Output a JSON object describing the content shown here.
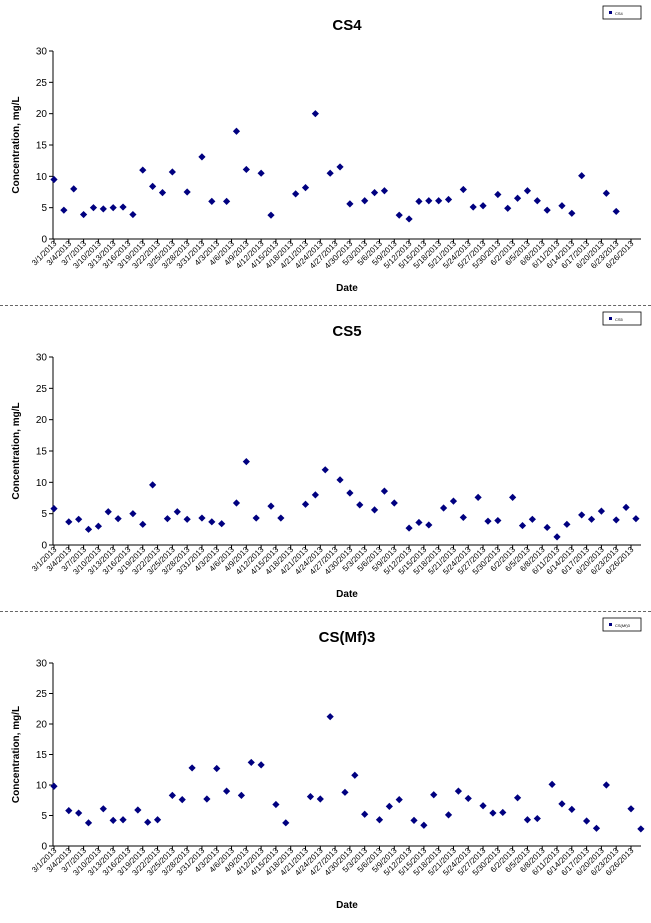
{
  "page": {
    "background": "#ffffff",
    "marker_color": "#000080",
    "border_style": "dashed"
  },
  "chart_data": [
    {
      "type": "scatter",
      "title": "CS4",
      "xlabel": "Date",
      "ylabel": "Concentration, mg/L",
      "ylim": [
        0,
        30
      ],
      "yticks": [
        0,
        5,
        10,
        15,
        20,
        25,
        30
      ],
      "xticklabels": [
        "3/1/2013",
        "3/4/2013",
        "3/7/2013",
        "3/10/2013",
        "3/13/2013",
        "3/16/2013",
        "3/19/2013",
        "3/22/2013",
        "3/25/2013",
        "3/28/2013",
        "3/31/2013",
        "4/3/2013",
        "4/6/2013",
        "4/9/2013",
        "4/12/2013",
        "4/15/2013",
        "4/18/2013",
        "4/21/2013",
        "4/24/2013",
        "4/27/2013",
        "4/30/2013",
        "5/3/2013",
        "5/6/2013",
        "5/9/2013",
        "5/12/2013",
        "5/15/2013",
        "5/18/2013",
        "5/21/2013",
        "5/24/2013",
        "5/27/2013",
        "5/30/2013",
        "6/2/2013",
        "6/5/2013",
        "6/8/2013",
        "6/11/2013",
        "6/14/2013",
        "6/17/2013",
        "6/20/2013",
        "6/23/2013",
        "6/26/2013"
      ],
      "legend_position": "top-right",
      "legend_label": "CS4",
      "points": [
        {
          "x": "3/1/2013",
          "y": 9.5
        },
        {
          "x": "3/3/2013",
          "y": 4.6
        },
        {
          "x": "3/5/2013",
          "y": 8.0
        },
        {
          "x": "3/7/2013",
          "y": 3.9
        },
        {
          "x": "3/9/2013",
          "y": 5.0
        },
        {
          "x": "3/11/2013",
          "y": 4.8
        },
        {
          "x": "3/13/2013",
          "y": 5.0
        },
        {
          "x": "3/15/2013",
          "y": 5.1
        },
        {
          "x": "3/17/2013",
          "y": 3.9
        },
        {
          "x": "3/19/2013",
          "y": 11.0
        },
        {
          "x": "3/21/2013",
          "y": 8.4
        },
        {
          "x": "3/23/2013",
          "y": 7.4
        },
        {
          "x": "3/25/2013",
          "y": 10.7
        },
        {
          "x": "3/28/2013",
          "y": 7.5
        },
        {
          "x": "3/31/2013",
          "y": 13.1
        },
        {
          "x": "4/2/2013",
          "y": 6.0
        },
        {
          "x": "4/5/2013",
          "y": 6.0
        },
        {
          "x": "4/7/2013",
          "y": 17.2
        },
        {
          "x": "4/9/2013",
          "y": 11.1
        },
        {
          "x": "4/12/2013",
          "y": 10.5
        },
        {
          "x": "4/14/2013",
          "y": 3.8
        },
        {
          "x": "4/19/2013",
          "y": 7.2
        },
        {
          "x": "4/21/2013",
          "y": 8.2
        },
        {
          "x": "4/23/2013",
          "y": 20.0
        },
        {
          "x": "4/26/2013",
          "y": 10.5
        },
        {
          "x": "4/28/2013",
          "y": 11.5
        },
        {
          "x": "4/30/2013",
          "y": 5.6
        },
        {
          "x": "5/3/2013",
          "y": 6.1
        },
        {
          "x": "5/5/2013",
          "y": 7.4
        },
        {
          "x": "5/7/2013",
          "y": 7.7
        },
        {
          "x": "5/10/2013",
          "y": 3.8
        },
        {
          "x": "5/12/2013",
          "y": 3.2
        },
        {
          "x": "5/14/2013",
          "y": 6.0
        },
        {
          "x": "5/16/2013",
          "y": 6.1
        },
        {
          "x": "5/18/2013",
          "y": 6.1
        },
        {
          "x": "5/20/2013",
          "y": 6.3
        },
        {
          "x": "5/23/2013",
          "y": 7.9
        },
        {
          "x": "5/25/2013",
          "y": 5.1
        },
        {
          "x": "5/27/2013",
          "y": 5.3
        },
        {
          "x": "5/30/2013",
          "y": 7.1
        },
        {
          "x": "6/1/2013",
          "y": 4.9
        },
        {
          "x": "6/3/2013",
          "y": 6.5
        },
        {
          "x": "6/5/2013",
          "y": 7.7
        },
        {
          "x": "6/7/2013",
          "y": 6.1
        },
        {
          "x": "6/9/2013",
          "y": 4.6
        },
        {
          "x": "6/12/2013",
          "y": 5.3
        },
        {
          "x": "6/14/2013",
          "y": 4.1
        },
        {
          "x": "6/16/2013",
          "y": 10.1
        },
        {
          "x": "6/21/2013",
          "y": 7.3
        },
        {
          "x": "6/23/2013",
          "y": 4.4
        }
      ]
    },
    {
      "type": "scatter",
      "title": "CS5",
      "xlabel": "Date",
      "ylabel": "Concentration, mg/L",
      "ylim": [
        0,
        30
      ],
      "yticks": [
        0,
        5,
        10,
        15,
        20,
        25,
        30
      ],
      "xticklabels": [
        "3/1/2013",
        "3/4/2013",
        "3/7/2013",
        "3/10/2013",
        "3/13/2013",
        "3/16/2013",
        "3/19/2013",
        "3/22/2013",
        "3/25/2013",
        "3/28/2013",
        "3/31/2013",
        "4/3/2013",
        "4/6/2013",
        "4/9/2013",
        "4/12/2013",
        "4/15/2013",
        "4/18/2013",
        "4/21/2013",
        "4/24/2013",
        "4/27/2013",
        "4/30/2013",
        "5/3/2013",
        "5/6/2013",
        "5/9/2013",
        "5/12/2013",
        "5/15/2013",
        "5/18/2013",
        "5/21/2013",
        "5/24/2013",
        "5/27/2013",
        "5/30/2013",
        "6/2/2013",
        "6/5/2013",
        "6/8/2013",
        "6/11/2013",
        "6/14/2013",
        "6/17/2013",
        "6/20/2013",
        "6/23/2013",
        "6/26/2013"
      ],
      "legend_position": "top-right",
      "legend_label": "CS5",
      "points": [
        {
          "x": "3/1/2013",
          "y": 5.8
        },
        {
          "x": "3/4/2013",
          "y": 3.7
        },
        {
          "x": "3/6/2013",
          "y": 4.1
        },
        {
          "x": "3/8/2013",
          "y": 2.5
        },
        {
          "x": "3/10/2013",
          "y": 3.0
        },
        {
          "x": "3/12/2013",
          "y": 5.3
        },
        {
          "x": "3/14/2013",
          "y": 4.2
        },
        {
          "x": "3/17/2013",
          "y": 5.0
        },
        {
          "x": "3/19/2013",
          "y": 3.3
        },
        {
          "x": "3/21/2013",
          "y": 9.6
        },
        {
          "x": "3/24/2013",
          "y": 4.2
        },
        {
          "x": "3/26/2013",
          "y": 5.3
        },
        {
          "x": "3/28/2013",
          "y": 4.1
        },
        {
          "x": "3/31/2013",
          "y": 4.3
        },
        {
          "x": "4/2/2013",
          "y": 3.7
        },
        {
          "x": "4/4/2013",
          "y": 3.4
        },
        {
          "x": "4/7/2013",
          "y": 6.7
        },
        {
          "x": "4/9/2013",
          "y": 13.3
        },
        {
          "x": "4/11/2013",
          "y": 4.3
        },
        {
          "x": "4/14/2013",
          "y": 6.2
        },
        {
          "x": "4/16/2013",
          "y": 4.3
        },
        {
          "x": "4/21/2013",
          "y": 6.5
        },
        {
          "x": "4/23/2013",
          "y": 8.0
        },
        {
          "x": "4/25/2013",
          "y": 12.0
        },
        {
          "x": "4/28/2013",
          "y": 10.4
        },
        {
          "x": "4/30/2013",
          "y": 8.3
        },
        {
          "x": "5/2/2013",
          "y": 6.4
        },
        {
          "x": "5/5/2013",
          "y": 5.6
        },
        {
          "x": "5/7/2013",
          "y": 8.6
        },
        {
          "x": "5/9/2013",
          "y": 6.7
        },
        {
          "x": "5/12/2013",
          "y": 2.7
        },
        {
          "x": "5/14/2013",
          "y": 3.6
        },
        {
          "x": "5/16/2013",
          "y": 3.2
        },
        {
          "x": "5/19/2013",
          "y": 5.9
        },
        {
          "x": "5/21/2013",
          "y": 7.0
        },
        {
          "x": "5/23/2013",
          "y": 4.4
        },
        {
          "x": "5/26/2013",
          "y": 7.6
        },
        {
          "x": "5/28/2013",
          "y": 3.8
        },
        {
          "x": "5/30/2013",
          "y": 3.9
        },
        {
          "x": "6/2/2013",
          "y": 7.6
        },
        {
          "x": "6/4/2013",
          "y": 3.1
        },
        {
          "x": "6/6/2013",
          "y": 4.1
        },
        {
          "x": "6/9/2013",
          "y": 2.8
        },
        {
          "x": "6/11/2013",
          "y": 1.3
        },
        {
          "x": "6/13/2013",
          "y": 3.3
        },
        {
          "x": "6/16/2013",
          "y": 4.8
        },
        {
          "x": "6/18/2013",
          "y": 4.1
        },
        {
          "x": "6/20/2013",
          "y": 5.4
        },
        {
          "x": "6/23/2013",
          "y": 4.0
        },
        {
          "x": "6/25/2013",
          "y": 6.0
        },
        {
          "x": "6/27/2013",
          "y": 4.2
        }
      ]
    },
    {
      "type": "scatter",
      "title": "CS(Mf)3",
      "xlabel": "Date",
      "ylabel": "Concentration, mg/L",
      "ylim": [
        0,
        30
      ],
      "yticks": [
        0,
        5,
        10,
        15,
        20,
        25,
        30
      ],
      "xticklabels": [
        "3/1/2013",
        "3/4/2013",
        "3/7/2013",
        "3/10/2013",
        "3/13/2013",
        "3/16/2013",
        "3/19/2013",
        "3/22/2013",
        "3/25/2013",
        "3/28/2013",
        "3/31/2013",
        "4/3/2013",
        "4/6/2013",
        "4/9/2013",
        "4/12/2013",
        "4/15/2013",
        "4/18/2013",
        "4/21/2013",
        "4/24/2013",
        "4/27/2013",
        "4/30/2013",
        "5/3/2013",
        "5/6/2013",
        "5/9/2013",
        "5/12/2013",
        "5/15/2013",
        "5/18/2013",
        "5/21/2013",
        "5/24/2013",
        "5/27/2013",
        "5/30/2013",
        "6/2/2013",
        "6/5/2013",
        "6/8/2013",
        "6/11/2013",
        "6/14/2013",
        "6/17/2013",
        "6/20/2013",
        "6/23/2013",
        "6/26/2013"
      ],
      "legend_position": "top-right",
      "legend_label": "CS(Mf)3",
      "points": [
        {
          "x": "3/1/2013",
          "y": 9.8
        },
        {
          "x": "3/4/2013",
          "y": 5.8
        },
        {
          "x": "3/6/2013",
          "y": 5.4
        },
        {
          "x": "3/8/2013",
          "y": 3.8
        },
        {
          "x": "3/11/2013",
          "y": 6.1
        },
        {
          "x": "3/13/2013",
          "y": 4.2
        },
        {
          "x": "3/15/2013",
          "y": 4.3
        },
        {
          "x": "3/18/2013",
          "y": 5.9
        },
        {
          "x": "3/20/2013",
          "y": 3.9
        },
        {
          "x": "3/22/2013",
          "y": 4.3
        },
        {
          "x": "3/25/2013",
          "y": 8.3
        },
        {
          "x": "3/27/2013",
          "y": 7.6
        },
        {
          "x": "3/29/2013",
          "y": 12.8
        },
        {
          "x": "4/1/2013",
          "y": 7.7
        },
        {
          "x": "4/3/2013",
          "y": 12.7
        },
        {
          "x": "4/5/2013",
          "y": 9.0
        },
        {
          "x": "4/8/2013",
          "y": 8.3
        },
        {
          "x": "4/10/2013",
          "y": 13.7
        },
        {
          "x": "4/12/2013",
          "y": 13.3
        },
        {
          "x": "4/15/2013",
          "y": 6.8
        },
        {
          "x": "4/17/2013",
          "y": 3.8
        },
        {
          "x": "4/22/2013",
          "y": 8.1
        },
        {
          "x": "4/24/2013",
          "y": 7.7
        },
        {
          "x": "4/26/2013",
          "y": 21.2
        },
        {
          "x": "4/29/2013",
          "y": 8.8
        },
        {
          "x": "5/1/2013",
          "y": 11.6
        },
        {
          "x": "5/3/2013",
          "y": 5.2
        },
        {
          "x": "5/6/2013",
          "y": 4.3
        },
        {
          "x": "5/8/2013",
          "y": 6.5
        },
        {
          "x": "5/10/2013",
          "y": 7.6
        },
        {
          "x": "5/13/2013",
          "y": 4.2
        },
        {
          "x": "5/15/2013",
          "y": 3.4
        },
        {
          "x": "5/17/2013",
          "y": 8.4
        },
        {
          "x": "5/20/2013",
          "y": 5.1
        },
        {
          "x": "5/22/2013",
          "y": 9.0
        },
        {
          "x": "5/24/2013",
          "y": 7.8
        },
        {
          "x": "5/27/2013",
          "y": 6.6
        },
        {
          "x": "5/29/2013",
          "y": 5.4
        },
        {
          "x": "5/31/2013",
          "y": 5.5
        },
        {
          "x": "6/3/2013",
          "y": 7.9
        },
        {
          "x": "6/5/2013",
          "y": 4.3
        },
        {
          "x": "6/7/2013",
          "y": 4.5
        },
        {
          "x": "6/10/2013",
          "y": 10.1
        },
        {
          "x": "6/12/2013",
          "y": 6.9
        },
        {
          "x": "6/14/2013",
          "y": 6.0
        },
        {
          "x": "6/17/2013",
          "y": 4.1
        },
        {
          "x": "6/19/2013",
          "y": 2.9
        },
        {
          "x": "6/21/2013",
          "y": 10.0
        },
        {
          "x": "6/26/2013",
          "y": 6.1
        },
        {
          "x": "6/28/2013",
          "y": 2.8
        }
      ]
    }
  ]
}
